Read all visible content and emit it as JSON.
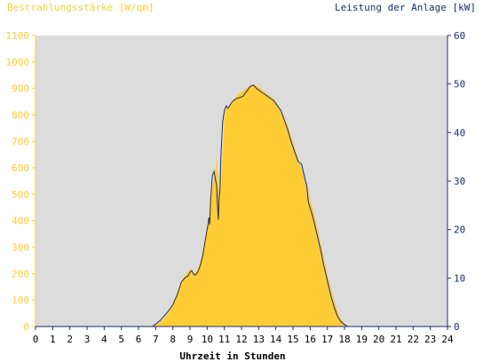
{
  "chart_data": {
    "type": "area",
    "title_left": "Bestrahlungsstärke [W/qm]",
    "title_right": "Leistung der Anlage [kW]",
    "xlabel": "Uhrzeit in Stunden",
    "xlim": [
      0,
      24
    ],
    "x_ticks": [
      "0",
      "1",
      "2",
      "3",
      "4",
      "5",
      "6",
      "7",
      "8",
      "9",
      "10",
      "11",
      "12",
      "13",
      "14",
      "15",
      "16",
      "17",
      "18",
      "19",
      "20",
      "21",
      "22",
      "23",
      "24"
    ],
    "ylim_left": [
      0,
      1100
    ],
    "ylim_right": [
      0,
      60
    ],
    "y_ticks_left": [
      "0",
      "100",
      "200",
      "300",
      "400",
      "500",
      "600",
      "700",
      "800",
      "900",
      "1000",
      "1100"
    ],
    "y_ticks_right": [
      "0",
      "10",
      "20",
      "30",
      "40",
      "50",
      "60"
    ],
    "grid": false,
    "series": [
      {
        "axis": "left",
        "style": "area",
        "x": [
          0,
          6.7,
          7,
          7.25,
          7.5,
          7.75,
          8,
          8.25,
          8.5,
          8.7,
          8.9,
          9.0,
          9.1,
          9.2,
          9.3,
          9.45,
          9.6,
          9.75,
          9.9,
          10.0,
          10.05,
          10.1,
          10.15,
          10.2,
          10.3,
          10.4,
          10.5,
          10.55,
          10.6,
          10.65,
          10.7,
          10.75,
          10.8,
          10.9,
          11.0,
          11.1,
          11.2,
          11.3,
          11.4,
          11.5,
          11.7,
          11.9,
          12.1,
          12.3,
          12.5,
          12.7,
          12.9,
          13.1,
          13.3,
          13.5,
          13.7,
          13.9,
          14.1,
          14.3,
          14.5,
          14.7,
          14.9,
          15.1,
          15.3,
          15.5,
          15.6,
          15.7,
          15.8,
          15.9,
          16.0,
          16.2,
          16.4,
          16.6,
          16.8,
          17.0,
          17.2,
          17.4,
          17.6,
          17.8,
          18.0,
          18.2,
          18.4,
          18.6,
          18.8,
          19.0,
          24
        ],
        "y": [
          0,
          0,
          5,
          15,
          30,
          50,
          80,
          120,
          170,
          190,
          210,
          220,
          210,
          200,
          205,
          215,
          240,
          280,
          330,
          370,
          400,
          420,
          390,
          450,
          520,
          560,
          600,
          650,
          580,
          520,
          600,
          560,
          500,
          620,
          780,
          830,
          820,
          830,
          840,
          850,
          870,
          880,
          890,
          900,
          910,
          915,
          910,
          900,
          890,
          880,
          870,
          860,
          840,
          820,
          790,
          760,
          720,
          680,
          640,
          600,
          580,
          560,
          540,
          520,
          480,
          440,
          380,
          320,
          260,
          200,
          150,
          100,
          60,
          30,
          10,
          0,
          0,
          0,
          0,
          0,
          0
        ],
        "color": "#FFCC33"
      },
      {
        "axis": "right",
        "style": "line",
        "x": [
          0,
          6.8,
          7,
          7.25,
          7.5,
          7.75,
          8,
          8.25,
          8.5,
          8.7,
          8.9,
          9.0,
          9.1,
          9.2,
          9.3,
          9.45,
          9.6,
          9.75,
          9.9,
          10.0,
          10.05,
          10.1,
          10.15,
          10.2,
          10.3,
          10.4,
          10.5,
          10.55,
          10.6,
          10.65,
          10.7,
          10.75,
          10.8,
          10.9,
          11.0,
          11.1,
          11.2,
          11.3,
          11.4,
          11.5,
          11.7,
          11.9,
          12.1,
          12.3,
          12.5,
          12.7,
          12.9,
          13.1,
          13.3,
          13.5,
          13.7,
          13.9,
          14.1,
          14.3,
          14.5,
          14.7,
          14.9,
          15.1,
          15.3,
          15.5,
          15.6,
          15.7,
          15.8,
          15.9,
          16.0,
          16.2,
          16.4,
          16.6,
          16.8,
          17.0,
          17.2,
          17.4,
          17.6,
          17.8,
          18.0,
          18.2,
          18.4,
          18.6,
          18.8,
          19.0,
          24
        ],
        "y": [
          0,
          0,
          0.5,
          1.2,
          2.2,
          3.2,
          4.5,
          6.5,
          9.2,
          10.0,
          10.5,
          11.2,
          11.5,
          10.8,
          10.6,
          11.2,
          12.6,
          14.8,
          18.0,
          20.0,
          21.0,
          22.5,
          21.0,
          26.0,
          31.0,
          32.0,
          30.0,
          29.0,
          25.0,
          22.0,
          27.0,
          28.0,
          35.0,
          42.0,
          44.5,
          45.5,
          45.0,
          45.5,
          46.0,
          46.5,
          47.0,
          47.2,
          47.5,
          48.5,
          49.5,
          49.8,
          49.0,
          48.5,
          48.0,
          47.5,
          47.0,
          46.5,
          45.5,
          44.5,
          42.5,
          40.5,
          38.0,
          36.0,
          34.0,
          33.5,
          32.0,
          30.5,
          29.0,
          25.5,
          24.5,
          22.0,
          19.0,
          16.0,
          12.5,
          9.5,
          6.5,
          4.0,
          2.0,
          1.0,
          0.4,
          0,
          0,
          0,
          0,
          0,
          0
        ],
        "color": "#1A2E6E"
      }
    ]
  }
}
